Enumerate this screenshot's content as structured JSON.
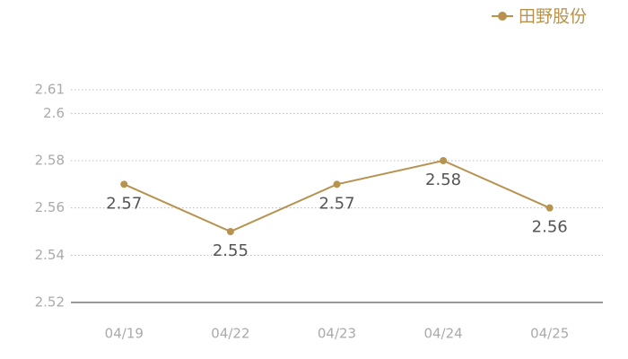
{
  "chart_data": {
    "type": "line",
    "categories": [
      "04/19",
      "04/22",
      "04/23",
      "04/24",
      "04/25"
    ],
    "series": [
      {
        "name": "田野股份",
        "color": "#b8924f",
        "values": [
          2.57,
          2.55,
          2.57,
          2.58,
          2.56
        ]
      }
    ],
    "ylim": [
      2.52,
      2.61
    ],
    "yticks": [
      2.52,
      2.54,
      2.56,
      2.58,
      2.6,
      2.61
    ],
    "grid": true,
    "legend": "top-right"
  }
}
